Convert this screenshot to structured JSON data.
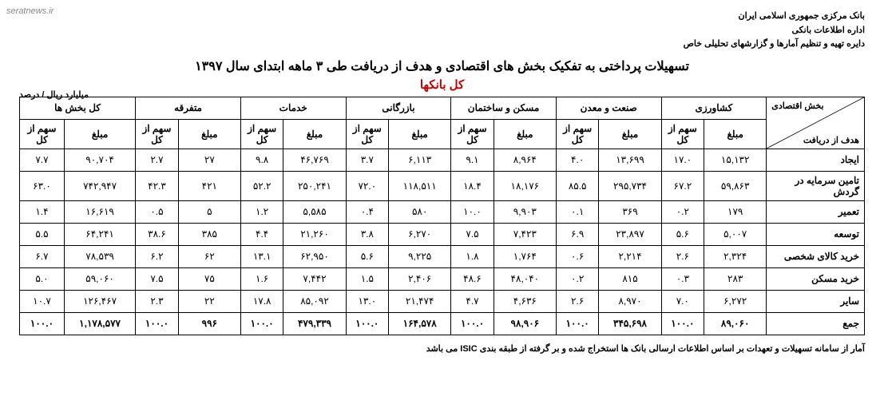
{
  "watermark": "seratnews.ir",
  "header": {
    "line1": "بانک مرکزی جمهوری اسلامی ایران",
    "line2": "اداره اطلاعات بانکی",
    "line3": "دایره تهیه و تنظیم آمارها و گزارشهای تحلیلی خاص"
  },
  "title": "تسهیلات پرداختی به تفکیک بخش های اقتصادی و هدف از دریافت طی ۳ ماهه ابتدای سال ۱۳۹۷",
  "subtitle": "کل بانکها",
  "unit": "میلیارد ریال / درصد",
  "corner": {
    "top": "بخش اقتصادی",
    "bottom": "هدف از دریافت"
  },
  "sub_headers": {
    "amount": "مبلغ",
    "share": "سهم از کل"
  },
  "sectors": [
    "کشاورزی",
    "صنعت و معدن",
    "مسکن و ساختمان",
    "بازرگانی",
    "خدمات",
    "متفرقه",
    "کل بخش ها"
  ],
  "rows": [
    {
      "label": "ایجاد",
      "cells": [
        [
          "۱۵,۱۳۲",
          "۱۷.۰"
        ],
        [
          "۱۳,۶۹۹",
          "۴.۰"
        ],
        [
          "۸,۹۶۴",
          "۹.۱"
        ],
        [
          "۶,۱۱۳",
          "۳.۷"
        ],
        [
          "۴۶,۷۶۹",
          "۹.۸"
        ],
        [
          "۲۷",
          "۲.۷"
        ],
        [
          "۹۰,۷۰۴",
          "۷.۷"
        ]
      ]
    },
    {
      "label": "تامین سرمایه در گردش",
      "cells": [
        [
          "۵۹,۸۶۳",
          "۶۷.۲"
        ],
        [
          "۲۹۵,۷۳۴",
          "۸۵.۵"
        ],
        [
          "۱۸,۱۷۶",
          "۱۸.۴"
        ],
        [
          "۱۱۸,۵۱۱",
          "۷۲.۰"
        ],
        [
          "۲۵۰,۲۴۱",
          "۵۲.۲"
        ],
        [
          "۴۲۱",
          "۴۲.۳"
        ],
        [
          "۷۴۲,۹۴۷",
          "۶۳.۰"
        ]
      ]
    },
    {
      "label": "تعمیر",
      "cells": [
        [
          "۱۷۹",
          "۰.۲"
        ],
        [
          "۳۶۹",
          "۰.۱"
        ],
        [
          "۹,۹۰۳",
          "۱۰.۰"
        ],
        [
          "۵۸۰",
          "۰.۴"
        ],
        [
          "۵,۵۸۵",
          "۱.۲"
        ],
        [
          "۵",
          "۰.۵"
        ],
        [
          "۱۶,۶۱۹",
          "۱.۴"
        ]
      ]
    },
    {
      "label": "توسعه",
      "cells": [
        [
          "۵,۰۰۷",
          "۵.۶"
        ],
        [
          "۲۳,۸۹۷",
          "۶.۹"
        ],
        [
          "۷,۴۲۳",
          "۷.۵"
        ],
        [
          "۶,۲۷۰",
          "۳.۸"
        ],
        [
          "۲۱,۲۶۰",
          "۴.۴"
        ],
        [
          "۳۸۵",
          "۳۸.۶"
        ],
        [
          "۶۴,۲۴۱",
          "۵.۵"
        ]
      ]
    },
    {
      "label": "خرید کالای شخصی",
      "cells": [
        [
          "۲,۳۲۴",
          "۲.۶"
        ],
        [
          "۲,۲۱۴",
          "۰.۶"
        ],
        [
          "۱,۷۶۴",
          "۱.۸"
        ],
        [
          "۹,۲۲۵",
          "۵.۶"
        ],
        [
          "۶۲,۹۵۰",
          "۱۳.۱"
        ],
        [
          "۶۲",
          "۶.۲"
        ],
        [
          "۷۸,۵۳۹",
          "۶.۷"
        ]
      ]
    },
    {
      "label": "خرید مسکن",
      "cells": [
        [
          "۲۸۳",
          "۰.۳"
        ],
        [
          "۸۱۵",
          "۰.۲"
        ],
        [
          "۴۸,۰۴۰",
          "۴۸.۶"
        ],
        [
          "۲,۴۰۶",
          "۱.۵"
        ],
        [
          "۷,۴۴۲",
          "۱.۶"
        ],
        [
          "۷۵",
          "۷.۵"
        ],
        [
          "۵۹,۰۶۰",
          "۵.۰"
        ]
      ]
    },
    {
      "label": "سایر",
      "cells": [
        [
          "۶,۲۷۲",
          "۷.۰"
        ],
        [
          "۸,۹۷۰",
          "۲.۶"
        ],
        [
          "۴,۶۳۶",
          "۴.۷"
        ],
        [
          "۲۱,۴۷۴",
          "۱۳.۰"
        ],
        [
          "۸۵,۰۹۲",
          "۱۷.۸"
        ],
        [
          "۲۲",
          "۲.۳"
        ],
        [
          "۱۲۶,۴۶۷",
          "۱۰.۷"
        ]
      ]
    },
    {
      "label": "جمع",
      "cells": [
        [
          "۸۹,۰۶۰",
          "۱۰۰.۰"
        ],
        [
          "۳۴۵,۶۹۸",
          "۱۰۰.۰"
        ],
        [
          "۹۸,۹۰۶",
          "۱۰۰.۰"
        ],
        [
          "۱۶۴,۵۷۸",
          "۱۰۰.۰"
        ],
        [
          "۴۷۹,۳۳۹",
          "۱۰۰.۰"
        ],
        [
          "۹۹۶",
          "۱۰۰.۰"
        ],
        [
          "۱,۱۷۸,۵۷۷",
          "۱۰۰.۰"
        ]
      ]
    }
  ],
  "footnote": "آمار از سامانه تسهیلات و تعهدات بر اساس اطلاعات ارسالی بانک ها استخراج شده و بر گرفته از طبقه بندی ISIC می باشد",
  "style": {
    "background_color": "#ffffff",
    "text_color": "#000000",
    "border_color": "#000000",
    "subtitle_color": "#c00000",
    "font_family": "Tahoma",
    "title_fontsize": 16,
    "body_fontsize": 12,
    "header_fontsize": 11
  }
}
